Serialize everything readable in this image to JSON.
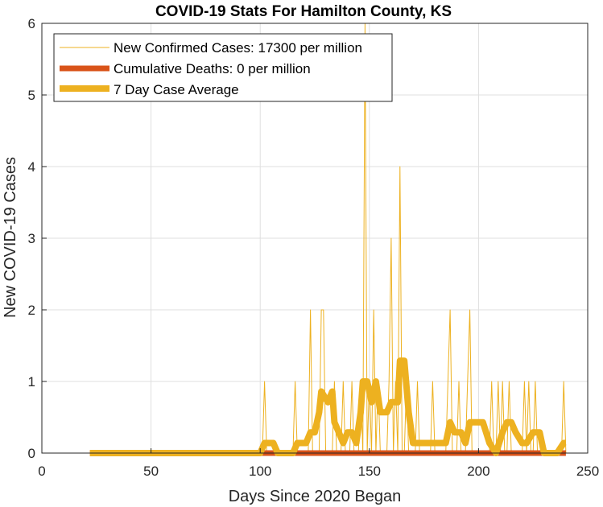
{
  "chart_data": {
    "type": "line",
    "title": "COVID-19 Stats For Hamilton County, KS",
    "xlabel": "Days Since 2020 Began",
    "ylabel": "New COVID-19 Cases",
    "xlim": [
      0,
      250
    ],
    "ylim": [
      0,
      6
    ],
    "xticks": [
      0,
      50,
      100,
      150,
      200,
      250
    ],
    "yticks": [
      0,
      1,
      2,
      3,
      4,
      5,
      6
    ],
    "grid": true,
    "legend_position": "top-left",
    "series": [
      {
        "name": "New Confirmed Cases: 17300 per million",
        "color": "#EDB120",
        "style": "thin",
        "x": [
          22,
          101,
          102,
          103,
          115,
          116,
          117,
          122,
          123,
          124,
          127,
          128,
          129,
          130,
          133,
          134,
          135,
          137,
          138,
          139,
          141,
          142,
          143,
          145,
          146,
          147,
          148,
          149,
          150,
          151,
          152,
          153,
          154,
          155,
          156,
          158,
          159,
          160,
          161,
          162,
          163,
          164,
          165,
          166,
          167,
          168,
          171,
          172,
          173,
          178,
          179,
          180,
          185,
          186,
          187,
          188,
          190,
          191,
          192,
          194,
          195,
          196,
          197,
          198,
          205,
          206,
          207,
          208,
          209,
          210,
          211,
          212,
          213,
          214,
          215,
          220,
          221,
          222,
          223,
          224,
          225,
          226,
          227,
          228,
          230,
          237,
          238,
          239,
          240
        ],
        "y": [
          0,
          0,
          1,
          0,
          0,
          1,
          0,
          0,
          2,
          0,
          0,
          2,
          2,
          0,
          0,
          1,
          0,
          0,
          1,
          0,
          0,
          1,
          0,
          0,
          1,
          0,
          6,
          0,
          1,
          0,
          2,
          0,
          1,
          0,
          0,
          0,
          1,
          3,
          0,
          1,
          0,
          4,
          0,
          0,
          1,
          0,
          0,
          1,
          0,
          0,
          1,
          0,
          0,
          1,
          2,
          0,
          0,
          1,
          0,
          0,
          1,
          2,
          0,
          0,
          0,
          1,
          0,
          0,
          1,
          0,
          1,
          0,
          0,
          1,
          0,
          0,
          1,
          0,
          1,
          0,
          0,
          1,
          0,
          0,
          0,
          0,
          0,
          1,
          0
        ]
      },
      {
        "name": "Cumulative Deaths: 0 per million",
        "color": "#D95319",
        "style": "thick",
        "x": [
          22,
          240
        ],
        "y": [
          0,
          0
        ]
      },
      {
        "name": "7 Day Case Average",
        "color": "#EDB120",
        "style": "thick",
        "x": [
          22,
          100,
          102,
          106,
          108,
          115,
          117,
          121,
          123,
          125,
          127,
          128,
          131,
          133,
          134,
          136,
          138,
          140,
          142,
          144,
          146,
          147,
          149,
          150,
          151,
          153,
          155,
          158,
          160,
          163,
          164,
          166,
          168,
          170,
          175,
          185,
          187,
          189,
          192,
          194,
          196,
          202,
          205,
          208,
          211,
          213,
          215,
          217,
          220,
          222,
          225,
          228,
          230,
          236,
          239,
          240
        ],
        "y": [
          0,
          0,
          0.14,
          0.14,
          0,
          0,
          0.14,
          0.14,
          0.29,
          0.29,
          0.57,
          0.86,
          0.71,
          0.86,
          0.43,
          0.29,
          0.14,
          0.29,
          0.29,
          0.14,
          0.57,
          1.0,
          1.0,
          0.86,
          0.71,
          1.0,
          0.57,
          0.57,
          0.71,
          0.71,
          1.29,
          1.29,
          0.57,
          0.14,
          0.14,
          0.14,
          0.43,
          0.29,
          0.29,
          0.14,
          0.43,
          0.43,
          0.14,
          0.0,
          0.29,
          0.43,
          0.43,
          0.29,
          0.14,
          0.14,
          0.29,
          0.29,
          0.0,
          0.0,
          0.14,
          0.14
        ]
      }
    ]
  }
}
